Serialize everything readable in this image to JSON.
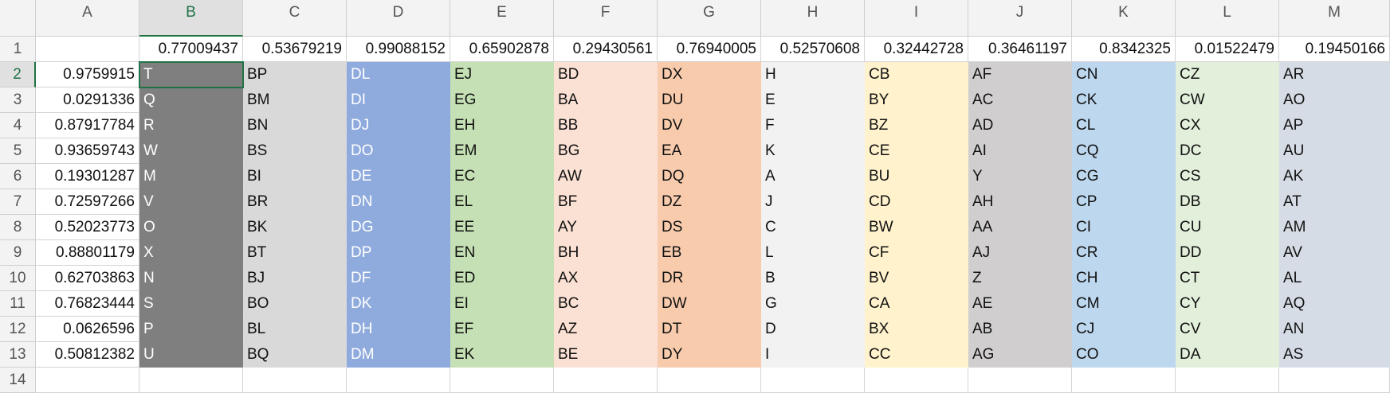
{
  "column_headers": [
    "A",
    "B",
    "C",
    "D",
    "E",
    "F",
    "G",
    "H",
    "I",
    "J",
    "K",
    "L",
    "M"
  ],
  "row_headers": [
    1,
    2,
    3,
    4,
    5,
    6,
    7,
    8,
    9,
    10,
    11,
    12,
    13,
    14
  ],
  "rows": [
    [
      null,
      0.77009437,
      0.53679219,
      0.99088152,
      0.65902878,
      0.29430561,
      0.76940005,
      0.52570608,
      0.32442728,
      0.36461197,
      0.8342325,
      0.01522479,
      0.19450166
    ],
    [
      0.9759915,
      "T",
      "BP",
      "DL",
      "EJ",
      "BD",
      "DX",
      "H",
      "CB",
      "AF",
      "CN",
      "CZ",
      "AR"
    ],
    [
      0.0291336,
      "Q",
      "BM",
      "DI",
      "EG",
      "BA",
      "DU",
      "E",
      "BY",
      "AC",
      "CK",
      "CW",
      "AO"
    ],
    [
      0.87917784,
      "R",
      "BN",
      "DJ",
      "EH",
      "BB",
      "DV",
      "F",
      "BZ",
      "AD",
      "CL",
      "CX",
      "AP"
    ],
    [
      0.93659743,
      "W",
      "BS",
      "DO",
      "EM",
      "BG",
      "EA",
      "K",
      "CE",
      "AI",
      "CQ",
      "DC",
      "AU"
    ],
    [
      0.19301287,
      "M",
      "BI",
      "DE",
      "EC",
      "AW",
      "DQ",
      "A",
      "BU",
      "Y",
      "CG",
      "CS",
      "AK"
    ],
    [
      0.72597266,
      "V",
      "BR",
      "DN",
      "EL",
      "BF",
      "DZ",
      "J",
      "CD",
      "AH",
      "CP",
      "DB",
      "AT"
    ],
    [
      0.52023773,
      "O",
      "BK",
      "DG",
      "EE",
      "AY",
      "DS",
      "C",
      "BW",
      "AA",
      "CI",
      "CU",
      "AM"
    ],
    [
      0.88801179,
      "X",
      "BT",
      "DP",
      "EN",
      "BH",
      "EB",
      "L",
      "CF",
      "AJ",
      "CR",
      "DD",
      "AV"
    ],
    [
      0.62703863,
      "N",
      "BJ",
      "DF",
      "ED",
      "AX",
      "DR",
      "B",
      "BV",
      "Z",
      "CH",
      "CT",
      "AL"
    ],
    [
      0.76823444,
      "S",
      "BO",
      "DK",
      "EI",
      "BC",
      "DW",
      "G",
      "CA",
      "AE",
      "CM",
      "CY",
      "AQ"
    ],
    [
      0.0626596,
      "P",
      "BL",
      "DH",
      "EF",
      "AZ",
      "DT",
      "D",
      "BX",
      "AB",
      "CJ",
      "CV",
      "AN"
    ],
    [
      0.50812382,
      "U",
      "BQ",
      "DM",
      "EK",
      "BE",
      "DY",
      "I",
      "CC",
      "AG",
      "CO",
      "DA",
      "AS"
    ],
    [
      null,
      null,
      null,
      null,
      null,
      null,
      null,
      null,
      null,
      null,
      null,
      null,
      null
    ]
  ]
}
